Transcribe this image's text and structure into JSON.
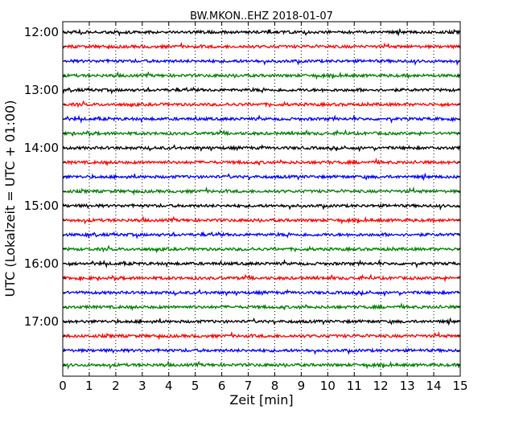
{
  "chart_data": {
    "type": "line",
    "title": "BW.MKON..EHZ 2018-01-07",
    "xlabel": "Zeit  [min]",
    "ylabel": "UTC (Lokalzeit = UTC + 01:00)",
    "xlim": [
      0,
      15
    ],
    "x_ticks": [
      "0",
      "1",
      "2",
      "3",
      "4",
      "5",
      "6",
      "7",
      "8",
      "9",
      "10",
      "11",
      "12",
      "13",
      "14",
      "15"
    ],
    "y_ticks": [
      "12:00",
      "13:00",
      "14:00",
      "15:00",
      "16:00",
      "17:00"
    ],
    "grid": "vertical dotted",
    "trace_interval_minutes": 15,
    "series": [
      {
        "start": "12:00",
        "color": "#000000"
      },
      {
        "start": "12:15",
        "color": "#ff0000"
      },
      {
        "start": "12:30",
        "color": "#0000ff"
      },
      {
        "start": "12:45",
        "color": "#008000"
      },
      {
        "start": "13:00",
        "color": "#000000"
      },
      {
        "start": "13:15",
        "color": "#ff0000"
      },
      {
        "start": "13:30",
        "color": "#0000ff"
      },
      {
        "start": "13:45",
        "color": "#008000"
      },
      {
        "start": "14:00",
        "color": "#000000"
      },
      {
        "start": "14:15",
        "color": "#ff0000"
      },
      {
        "start": "14:30",
        "color": "#0000ff"
      },
      {
        "start": "14:45",
        "color": "#008000"
      },
      {
        "start": "15:00",
        "color": "#000000"
      },
      {
        "start": "15:15",
        "color": "#ff0000"
      },
      {
        "start": "15:30",
        "color": "#0000ff"
      },
      {
        "start": "15:45",
        "color": "#008000"
      },
      {
        "start": "16:00",
        "color": "#000000"
      },
      {
        "start": "16:15",
        "color": "#ff0000"
      },
      {
        "start": "16:30",
        "color": "#0000ff"
      },
      {
        "start": "16:45",
        "color": "#008000"
      },
      {
        "start": "17:00",
        "color": "#000000"
      },
      {
        "start": "17:15",
        "color": "#ff0000"
      },
      {
        "start": "17:30",
        "color": "#0000ff"
      },
      {
        "start": "17:45",
        "color": "#008000"
      }
    ]
  }
}
